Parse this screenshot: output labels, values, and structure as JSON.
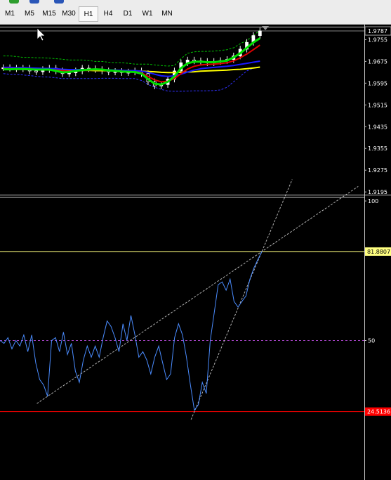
{
  "toolbar": {
    "timeframes": [
      {
        "label": "M1",
        "active": false
      },
      {
        "label": "M5",
        "active": false
      },
      {
        "label": "M15",
        "active": false
      },
      {
        "label": "M30",
        "active": false
      },
      {
        "label": "H1",
        "active": true
      },
      {
        "label": "H4",
        "active": false
      },
      {
        "label": "D1",
        "active": false
      },
      {
        "label": "W1",
        "active": false
      },
      {
        "label": "MN",
        "active": false
      }
    ]
  },
  "colors": {
    "background": "#000000",
    "grid_line": "#b0b0b0",
    "bull_candle": "#ffffff",
    "bear_candle": "#000000",
    "ma_fast": "#00e000",
    "ma_mid": "#e00000",
    "ma_slow": "#1a1aff",
    "ma_long": "#ffff00",
    "envelope": "#00c000",
    "envelope_low": "#3030ff",
    "indicator_line": "#4a8cff",
    "trend_line": "#b0b0b0",
    "level_high": "#ffff80",
    "level_mid": "#a040c0",
    "level_low": "#ff0000"
  },
  "chart_data": [
    {
      "type": "line",
      "panel": "price",
      "price_axis_labels": [
        "1.9755",
        "1.9675",
        "1.9595",
        "1.9515",
        "1.9435",
        "1.9355",
        "1.9275",
        "1.9195"
      ],
      "current_price_label": "1.9787",
      "current_price": 1.9787,
      "ylim": [
        1.9185,
        1.98
      ],
      "series": [
        {
          "role": "close",
          "values": [
            1.9652,
            1.965,
            1.9648,
            1.965,
            1.964,
            1.9637,
            1.9645,
            1.965,
            1.964,
            1.963,
            1.9633,
            1.964,
            1.965,
            1.9648,
            1.9645,
            1.964,
            1.9636,
            1.9638,
            1.9634,
            1.9636,
            1.964,
            1.963,
            1.96,
            1.9585,
            1.959,
            1.961,
            1.964,
            1.967,
            1.968,
            1.9677,
            1.9675,
            1.967,
            1.9675,
            1.9678,
            1.9682,
            1.9695,
            1.972,
            1.9745,
            1.977,
            1.9787
          ]
        },
        {
          "role": "ma-fast",
          "values": [
            1.9646,
            1.9646,
            1.9647,
            1.9647,
            1.9646,
            1.9645,
            1.9645,
            1.9645,
            1.964,
            1.9635,
            1.9636,
            1.964,
            1.9643,
            1.9645,
            1.9646,
            1.9645,
            1.9642,
            1.964,
            1.9638,
            1.9637,
            1.9636,
            1.963,
            1.961,
            1.9593,
            1.959,
            1.96,
            1.962,
            1.965,
            1.9668,
            1.9674,
            1.9674,
            1.9672,
            1.9672,
            1.9675,
            1.9678,
            1.969,
            1.9705,
            1.9725,
            1.9745,
            1.976
          ]
        },
        {
          "role": "ma-mid",
          "values": [
            1.9648,
            1.9648,
            1.9648,
            1.9648,
            1.9647,
            1.9646,
            1.9645,
            1.9645,
            1.9643,
            1.964,
            1.9639,
            1.964,
            1.9642,
            1.9643,
            1.9644,
            1.9644,
            1.9643,
            1.9641,
            1.9639,
            1.9638,
            1.9637,
            1.9633,
            1.962,
            1.9607,
            1.96,
            1.9602,
            1.9612,
            1.963,
            1.9647,
            1.9657,
            1.9662,
            1.9664,
            1.9665,
            1.9667,
            1.967,
            1.9677,
            1.9688,
            1.9702,
            1.9718,
            1.9735
          ]
        },
        {
          "role": "ma-slow",
          "values": [
            1.9653,
            1.9653,
            1.9652,
            1.9652,
            1.9651,
            1.965,
            1.9649,
            1.9649,
            1.9648,
            1.9646,
            1.9645,
            1.9645,
            1.9645,
            1.9645,
            1.9645,
            1.9645,
            1.9644,
            1.9643,
            1.9642,
            1.9641,
            1.9641,
            1.9639,
            1.9635,
            1.9628,
            1.9622,
            1.962,
            1.9622,
            1.9628,
            1.9636,
            1.9643,
            1.9648,
            1.9651,
            1.9653,
            1.9655,
            1.9657,
            1.966,
            1.9664,
            1.9668,
            1.9672,
            1.9676
          ]
        },
        {
          "role": "ma-long",
          "values": [
            1.9648,
            1.9647,
            1.9646,
            1.9646,
            1.9645,
            1.9645,
            1.9644,
            1.9644,
            1.9643,
            1.9643,
            1.9642,
            1.9642,
            1.9642,
            1.9642,
            1.9641,
            1.9641,
            1.9641,
            1.9641,
            1.964,
            1.964,
            1.964,
            1.9639,
            1.9638,
            1.9637,
            1.9635,
            1.9634,
            1.9634,
            1.9635,
            1.9636,
            1.9637,
            1.9639,
            1.964,
            1.9641,
            1.9642,
            1.9643,
            1.9645,
            1.9646,
            1.9648,
            1.9651,
            1.9654
          ]
        },
        {
          "role": "envelope-upper",
          "values": [
            1.9695,
            1.9695,
            1.9693,
            1.969,
            1.969,
            1.9688,
            1.9688,
            1.9687,
            1.9685,
            1.9683,
            1.968,
            1.968,
            1.968,
            1.9678,
            1.9675,
            1.9675,
            1.9672,
            1.967,
            1.967,
            1.9668,
            1.9665,
            1.9665,
            1.9665,
            1.9662,
            1.966,
            1.9658,
            1.966,
            1.9685,
            1.9705,
            1.971,
            1.9712,
            1.9712,
            1.9713,
            1.9715,
            1.9718,
            1.9725,
            1.974,
            1.9752,
            1.977,
            1.979
          ]
        },
        {
          "role": "envelope-lower",
          "values": [
            1.963,
            1.9628,
            1.9627,
            1.9625,
            1.9623,
            1.962,
            1.9618,
            1.9617,
            1.9615,
            1.9612,
            1.9612,
            1.9612,
            1.9612,
            1.9612,
            1.9612,
            1.9613,
            1.9613,
            1.9613,
            1.9612,
            1.9612,
            1.9612,
            1.9605,
            1.959,
            1.958,
            1.9572,
            1.9566,
            1.9565,
            1.9565,
            1.9566,
            1.9567,
            1.9567,
            1.9567,
            1.9568,
            1.957,
            1.958,
            1.96,
            1.962,
            1.964,
            1.965,
            1.9655
          ]
        }
      ]
    },
    {
      "type": "line",
      "panel": "oscillator",
      "axis_labels": [
        "100",
        "50"
      ],
      "level_labels": {
        "high": "81.8807",
        "low": "24.5136"
      },
      "levels": {
        "high": 81.8807,
        "mid": 50,
        "low": 24.5136
      },
      "ylim": [
        0,
        100
      ],
      "series": [
        {
          "role": "oscillator",
          "values": [
            50,
            49,
            51,
            47,
            50,
            48,
            52,
            46,
            52,
            42,
            36,
            34,
            30,
            50,
            51,
            46,
            53,
            45,
            49,
            39,
            35,
            43,
            48,
            44,
            48,
            44,
            51,
            57,
            55,
            51,
            46,
            56,
            50,
            59,
            52,
            44,
            46,
            43,
            38,
            44,
            48,
            42,
            36,
            38,
            51,
            56,
            52,
            44,
            34,
            25,
            27,
            35,
            31,
            50,
            60,
            70,
            71,
            68,
            72,
            64,
            62,
            64,
            66,
            72,
            76,
            79,
            81.8807
          ]
        },
        {
          "role": "trend-line-upper",
          "values": [
            30,
            81.8807
          ]
        },
        {
          "role": "trend-line-lower",
          "values": [
            24.5136,
            81.8807
          ]
        }
      ]
    }
  ]
}
